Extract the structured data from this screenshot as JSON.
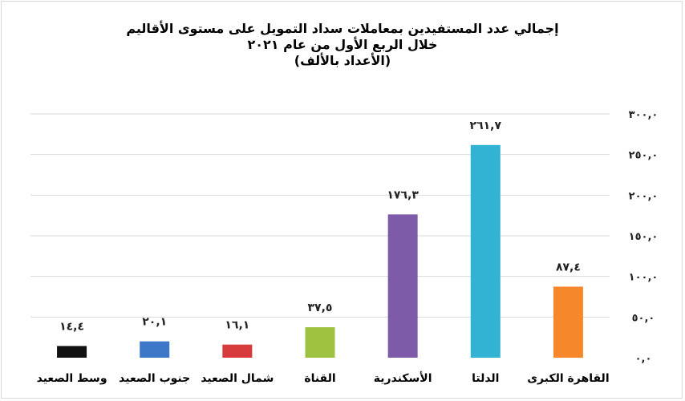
{
  "chart_data": {
    "type": "bar",
    "title": [
      "إجمالي عدد المستفيدين بمعاملات سداد التمويل على مستوى الأقاليم",
      "خلال الربع الأول من عام ٢٠٢١",
      "(الأعداد بالألف)"
    ],
    "categories": [
      "القاهرة الكبرى",
      "الدلتا",
      "الأسكندرية",
      "القناة",
      "شمال الصعيد",
      "جنوب الصعيد",
      "وسط الصعيد"
    ],
    "values": [
      87.4,
      261.7,
      176.3,
      37.5,
      16.1,
      20.1,
      14.4
    ],
    "value_labels": [
      "٨٧,٤",
      "٢٦١,٧",
      "١٧٦,٣",
      "٣٧,٥",
      "١٦,١",
      "٢٠,١",
      "١٤,٤"
    ],
    "colors": [
      "#f6872a",
      "#33b3d4",
      "#7e5ba8",
      "#9cc23f",
      "#d63a3a",
      "#3d78c8",
      "#111111"
    ],
    "ylim": [
      0,
      300
    ],
    "yticks": [
      0,
      50,
      100,
      150,
      200,
      250,
      300
    ],
    "ytick_labels": [
      "٠,٠",
      "٥٠,٠",
      "١٠٠,٠",
      "١٥٠,٠",
      "٢٠٠,٠",
      "٢٥٠,٠",
      "٣٠٠,٠"
    ],
    "y_axis_side": "right",
    "grid": true,
    "legend": "none"
  }
}
